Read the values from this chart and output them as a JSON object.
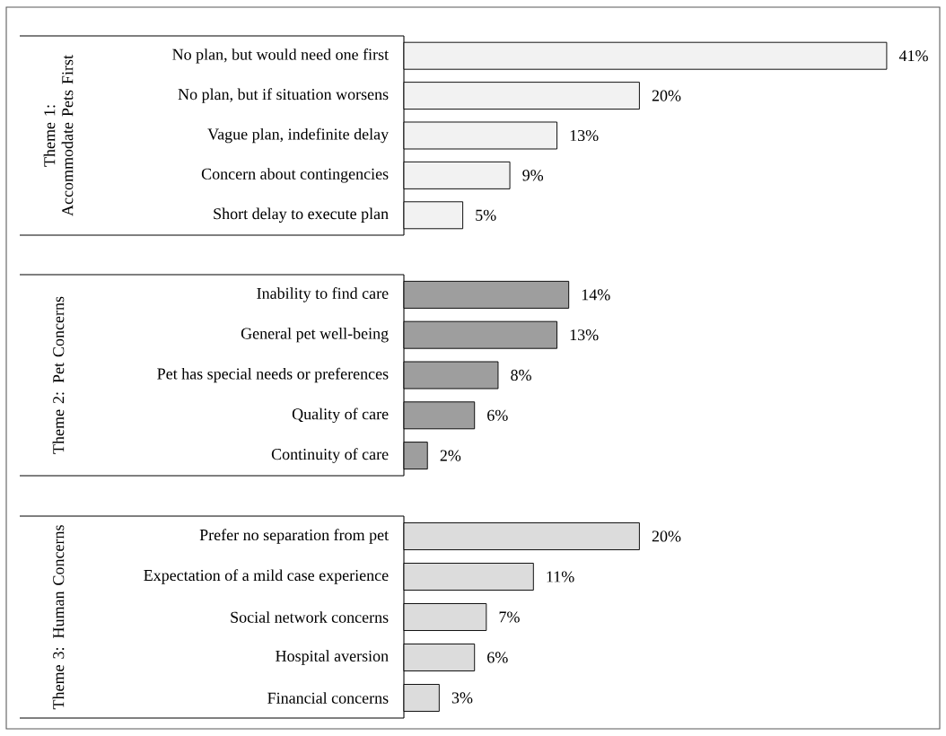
{
  "chart_data": [
    {
      "type": "bar",
      "orientation": "horizontal",
      "ylabel": "Theme 1: Accommodate Pets First",
      "categories": [
        "No plan, but would need one first",
        "No plan, but if situation worsens",
        "Vague plan, indefinite delay",
        "Concern about contingencies",
        "Short delay to execute plan"
      ],
      "values": [
        41,
        20,
        13,
        9,
        5
      ],
      "color": "#f2f2f2",
      "value_labels": [
        "41%",
        "20%",
        "13%",
        "9%",
        "5%"
      ]
    },
    {
      "type": "bar",
      "orientation": "horizontal",
      "ylabel": "Theme 2: Pet Concerns",
      "categories": [
        "Inability to find care",
        "General pet well-being",
        "Pet has special needs or preferences",
        "Quality of care",
        "Continuity of care"
      ],
      "values": [
        14,
        13,
        8,
        6,
        2
      ],
      "color": "#9e9e9e",
      "value_labels": [
        "14%",
        "13%",
        "8%",
        "6%",
        "2%"
      ]
    },
    {
      "type": "bar",
      "orientation": "horizontal",
      "ylabel": "Theme 3: Human Concerns",
      "categories": [
        "Prefer no separation from pet",
        "Expectation of  a mild case experience",
        "Social network concerns",
        "Hospital aversion",
        "Financial concerns"
      ],
      "values": [
        20,
        11,
        7,
        6,
        3
      ],
      "color": "#dcdcdc",
      "value_labels": [
        "20%",
        "11%",
        "7%",
        "6%",
        "3%"
      ]
    }
  ]
}
